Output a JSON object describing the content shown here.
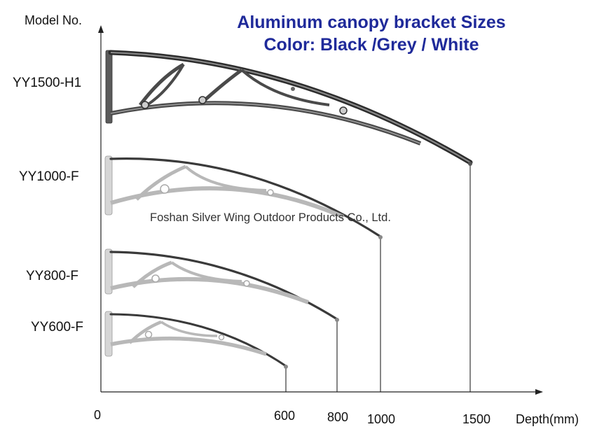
{
  "title": {
    "line1": "Aluminum canopy bracket Sizes",
    "line2": "Color: Black /Grey / White",
    "color": "#1f2a9a"
  },
  "watermark": "Foshan Silver Wing Outdoor Products Co., Ltd.",
  "axes": {
    "y_label": "Model No.",
    "x_label": "Depth(mm)",
    "origin_label": "0"
  },
  "brackets": [
    {
      "model": "YY1500-H1",
      "depth_mm": 1500,
      "depth_label": "1500",
      "color": "dark-grey"
    },
    {
      "model": "YY1000-F",
      "depth_mm": 1000,
      "depth_label": "1000",
      "color": "grey"
    },
    {
      "model": "YY800-F",
      "depth_mm": 800,
      "depth_label": "800",
      "color": "grey"
    },
    {
      "model": "YY600-F",
      "depth_mm": 600,
      "depth_label": "600",
      "color": "grey"
    }
  ]
}
